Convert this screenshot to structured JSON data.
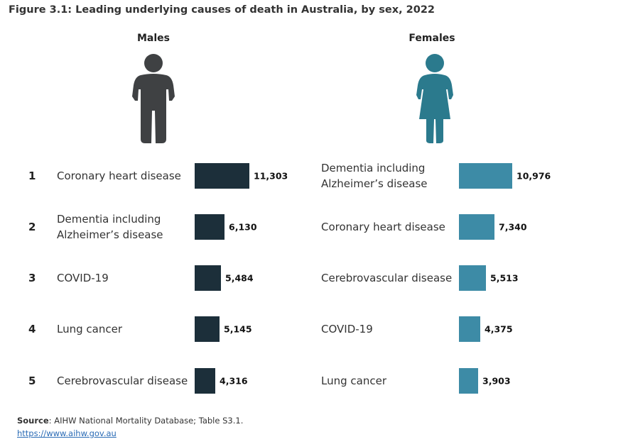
{
  "title": "Figure 3.1: Leading underlying causes of death in Australia, by sex, 2022",
  "colors": {
    "male": "#1c2f3a",
    "female": "#3d8ba6",
    "male_icon": "#3f4143",
    "female_icon": "#2b7a8d"
  },
  "icons": {
    "male": "male-person-icon",
    "female": "female-person-icon"
  },
  "chart_data": {
    "type": "bar",
    "orientation": "horizontal",
    "panels": [
      {
        "name": "Males",
        "ranks": [
          "1",
          "2",
          "3",
          "4",
          "5"
        ],
        "categories": [
          [
            "Coronary heart disease"
          ],
          [
            "Dementia including",
            "Alzheimer’s disease"
          ],
          [
            "COVID-19"
          ],
          [
            "Lung cancer"
          ],
          [
            "Cerebrovascular disease"
          ]
        ],
        "values": [
          11303,
          6130,
          5484,
          5145,
          4316
        ],
        "labels": [
          "11,303",
          "6,130",
          "5,484",
          "5,145",
          "4,316"
        ]
      },
      {
        "name": "Females",
        "categories": [
          [
            "Dementia including",
            "Alzheimer’s disease"
          ],
          [
            "Coronary heart disease"
          ],
          [
            "Cerebrovascular disease"
          ],
          [
            "COVID-19"
          ],
          [
            "Lung cancer"
          ]
        ],
        "values": [
          10976,
          7340,
          5513,
          4375,
          3903
        ],
        "labels": [
          "10,976",
          "7,340",
          "5,513",
          "4,375",
          "3,903"
        ]
      }
    ]
  },
  "source": {
    "label": "Source",
    "text": ": AIHW National Mortality Database; Table S3.1.",
    "url": "https://www.aihw.gov.au"
  }
}
